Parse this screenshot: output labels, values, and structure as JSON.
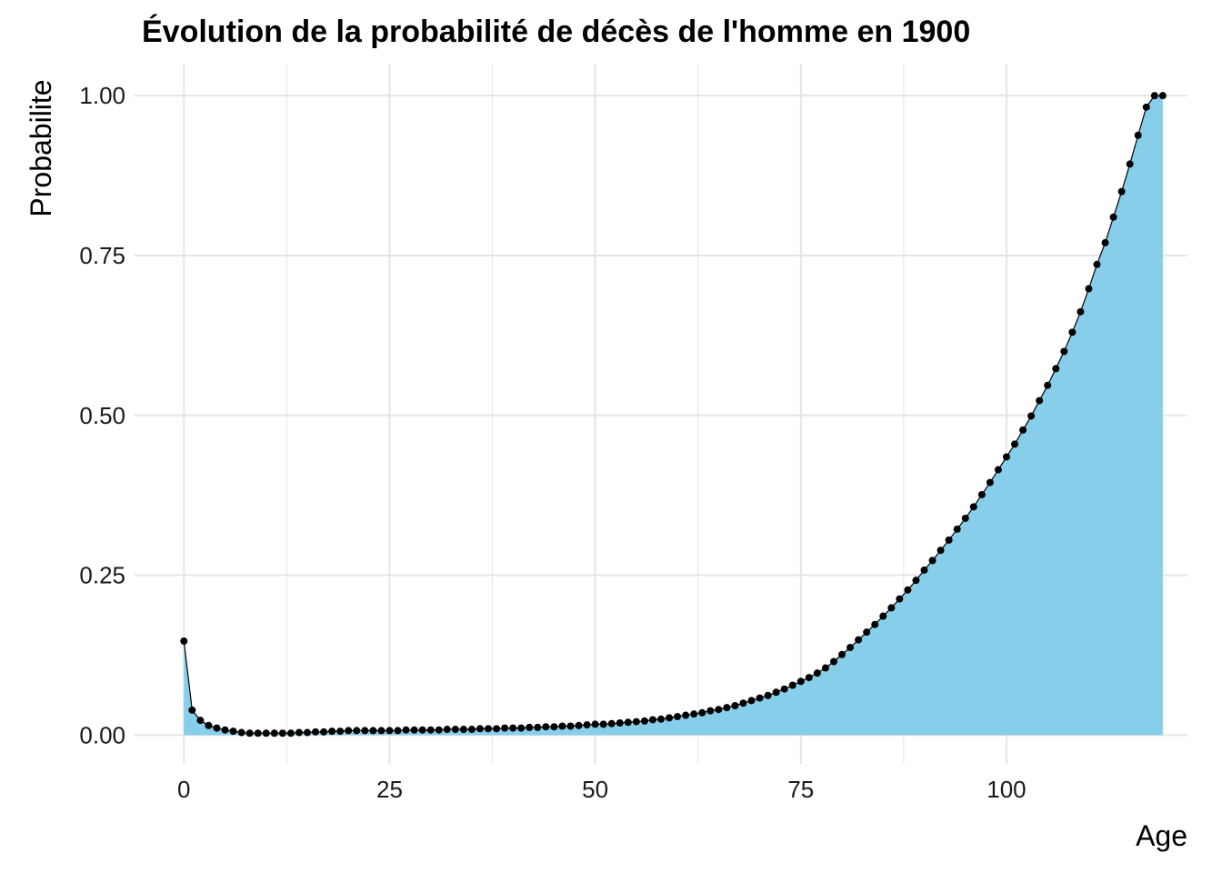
{
  "chart_data": {
    "type": "area",
    "title": "Évolution de la probabilité de décès de l'homme en 1900",
    "xlabel": "Age",
    "ylabel": "Probabilite",
    "xlim": [
      -6,
      122
    ],
    "ylim": [
      -0.045,
      1.05
    ],
    "x_ticks": [
      0,
      25,
      50,
      75,
      100
    ],
    "x_tick_labels": [
      "0",
      "25",
      "50",
      "75",
      "100"
    ],
    "y_ticks": [
      0,
      0.25,
      0.5,
      0.75,
      1.0
    ],
    "y_tick_labels": [
      "0.00",
      "0.25",
      "0.50",
      "0.75",
      "1.00"
    ],
    "grid": true,
    "colors": {
      "fill": "#87CEEB",
      "line": "#000000",
      "grid": "#e5e5e5"
    },
    "x": [
      0,
      1,
      2,
      3,
      4,
      5,
      6,
      7,
      8,
      9,
      10,
      11,
      12,
      13,
      14,
      15,
      16,
      17,
      18,
      19,
      20,
      21,
      22,
      23,
      24,
      25,
      26,
      27,
      28,
      29,
      30,
      31,
      32,
      33,
      34,
      35,
      36,
      37,
      38,
      39,
      40,
      41,
      42,
      43,
      44,
      45,
      46,
      47,
      48,
      49,
      50,
      51,
      52,
      53,
      54,
      55,
      56,
      57,
      58,
      59,
      60,
      61,
      62,
      63,
      64,
      65,
      66,
      67,
      68,
      69,
      70,
      71,
      72,
      73,
      74,
      75,
      76,
      77,
      78,
      79,
      80,
      81,
      82,
      83,
      84,
      85,
      86,
      87,
      88,
      89,
      90,
      91,
      92,
      93,
      94,
      95,
      96,
      97,
      98,
      99,
      100,
      101,
      102,
      103,
      104,
      105,
      106,
      107,
      108,
      109,
      110,
      111,
      112,
      113,
      114,
      115,
      116,
      117,
      118,
      119
    ],
    "y": [
      0.147,
      0.039,
      0.023,
      0.015,
      0.011,
      0.008,
      0.006,
      0.004,
      0.003,
      0.003,
      0.003,
      0.003,
      0.003,
      0.003,
      0.004,
      0.004,
      0.005,
      0.005,
      0.006,
      0.006,
      0.007,
      0.007,
      0.007,
      0.007,
      0.007,
      0.007,
      0.007,
      0.008,
      0.008,
      0.008,
      0.008,
      0.008,
      0.009,
      0.009,
      0.009,
      0.009,
      0.01,
      0.01,
      0.01,
      0.011,
      0.011,
      0.011,
      0.012,
      0.012,
      0.013,
      0.013,
      0.014,
      0.014,
      0.015,
      0.016,
      0.017,
      0.017,
      0.018,
      0.019,
      0.02,
      0.021,
      0.022,
      0.024,
      0.025,
      0.027,
      0.029,
      0.031,
      0.033,
      0.035,
      0.038,
      0.04,
      0.043,
      0.046,
      0.05,
      0.054,
      0.058,
      0.062,
      0.067,
      0.072,
      0.078,
      0.084,
      0.09,
      0.097,
      0.105,
      0.115,
      0.126,
      0.137,
      0.149,
      0.161,
      0.173,
      0.186,
      0.199,
      0.213,
      0.227,
      0.242,
      0.258,
      0.273,
      0.289,
      0.305,
      0.322,
      0.339,
      0.357,
      0.376,
      0.395,
      0.415,
      0.435,
      0.455,
      0.477,
      0.499,
      0.523,
      0.547,
      0.573,
      0.6,
      0.63,
      0.662,
      0.698,
      0.736,
      0.77,
      0.81,
      0.85,
      0.893,
      0.938,
      0.982,
      1.0,
      1.0
    ]
  }
}
